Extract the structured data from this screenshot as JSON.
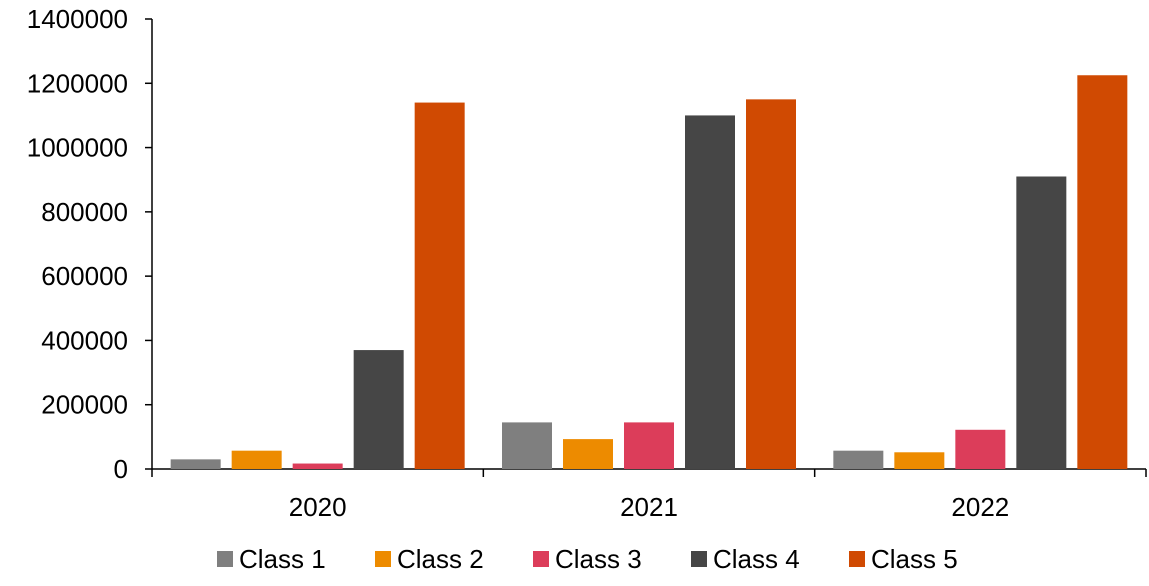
{
  "chart_data": {
    "type": "bar",
    "title": "",
    "xlabel": "",
    "ylabel": "",
    "categories": [
      "2020",
      "2021",
      "2022"
    ],
    "ylim": [
      0,
      1400000
    ],
    "yticks": [
      0,
      200000,
      400000,
      600000,
      800000,
      1000000,
      1200000,
      1400000
    ],
    "grid": false,
    "legend_position": "bottom",
    "series": [
      {
        "name": "Class 1",
        "color": "#7f7f7f",
        "values": [
          30000,
          145000,
          57000
        ]
      },
      {
        "name": "Class 2",
        "color": "#ed8b00",
        "values": [
          57000,
          93000,
          52000
        ]
      },
      {
        "name": "Class 3",
        "color": "#dc3d5a",
        "values": [
          17000,
          145000,
          122000
        ]
      },
      {
        "name": "Class 4",
        "color": "#464646",
        "values": [
          370000,
          1100000,
          910000
        ]
      },
      {
        "name": "Class 5",
        "color": "#d04a02",
        "values": [
          1140000,
          1150000,
          1225000
        ]
      }
    ]
  }
}
